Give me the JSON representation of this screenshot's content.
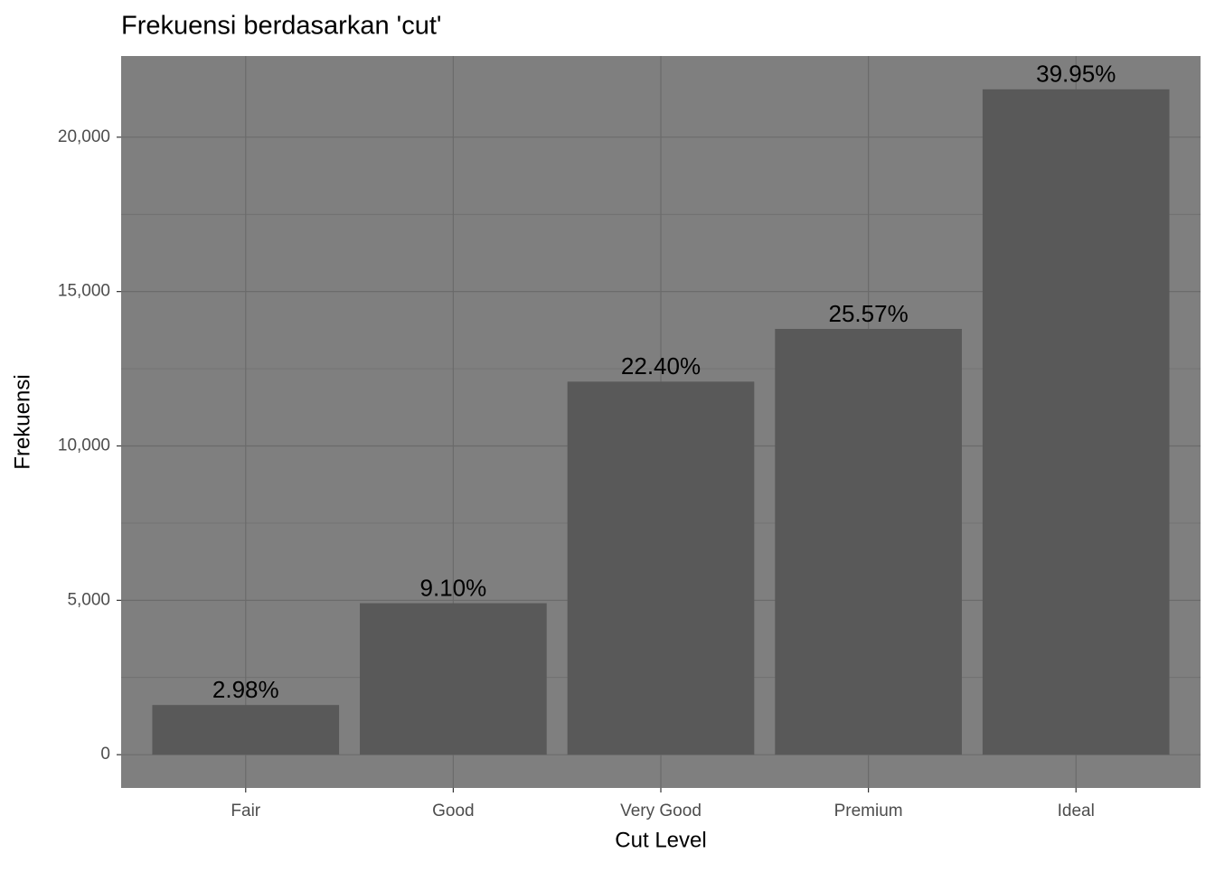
{
  "chart_data": {
    "type": "bar",
    "title": "Frekuensi berdasarkan 'cut'",
    "x_label": "Cut Level",
    "y_label": "Frekuensi",
    "categories": [
      "Fair",
      "Good",
      "Very Good",
      "Premium",
      "Ideal"
    ],
    "values": [
      1610,
      4906,
      12082,
      13791,
      21551
    ],
    "percent": [
      2.98,
      9.1,
      22.4,
      25.57,
      39.95
    ],
    "percent_labels": [
      "2.98%",
      "9.10%",
      "22.40%",
      "25.57%",
      "39.95%"
    ],
    "color": "#595959",
    "panel_color": "#7f7f7f",
    "grid_color": "#6b6b6b",
    "ylim": [
      -1077.55,
      22628.55
    ],
    "yticks": [
      0,
      {
        "value": 5000,
        "label": "5,000"
      },
      {
        "value": 10000,
        "label": "10,000"
      },
      {
        "value": 15000,
        "label": "15,000"
      },
      {
        "value": 20000,
        "label": "20,000"
      }
    ],
    "grid": true
  }
}
